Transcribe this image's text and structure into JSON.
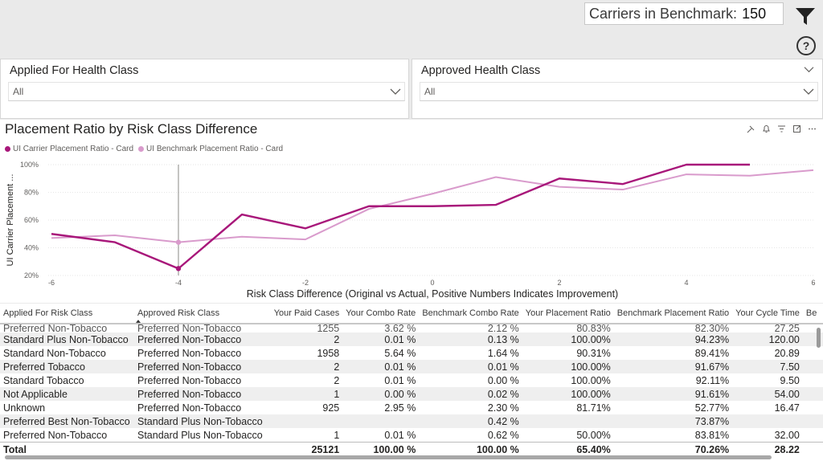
{
  "header": {
    "benchmark_label": "Carriers in Benchmark:",
    "benchmark_value": "150"
  },
  "slicers": [
    {
      "title": "Applied For Health Class",
      "value": "All"
    },
    {
      "title": "Approved Health Class",
      "value": "All"
    }
  ],
  "chart_data": {
    "type": "line",
    "title": "Placement Ratio by Risk Class Difference",
    "xlabel": "Risk Class Difference (Original vs Actual, Positive Numbers Indicates Improvement)",
    "ylabel": "UI Carrier Placement ...",
    "xlim": [
      -6,
      6
    ],
    "ylim": [
      20,
      100
    ],
    "x_ticks": [
      "-6",
      "-4",
      "-2",
      "0",
      "2",
      "4",
      "6"
    ],
    "y_ticks": [
      "20%",
      "40%",
      "60%",
      "80%",
      "100%"
    ],
    "legend_position": "top-left",
    "colors": {
      "carrier": "#a8177a",
      "benchmark": "#d99bcc"
    },
    "series": [
      {
        "name": "UI Carrier Placement Ratio - Card",
        "x": [
          -6,
          -5,
          -4,
          -3,
          -2,
          -1,
          0,
          1,
          2,
          3,
          4,
          5
        ],
        "values": [
          50,
          44,
          25,
          64,
          54,
          70,
          70,
          71,
          90,
          86,
          100,
          100
        ]
      },
      {
        "name": "UI Benchmark Placement Ratio - Card",
        "x": [
          -6,
          -5,
          -4,
          -3,
          -2,
          -1,
          0,
          1,
          2,
          3,
          4,
          5,
          6
        ],
        "values": [
          47,
          49,
          44,
          48,
          46,
          68,
          79,
          91,
          84,
          82,
          93,
          92,
          96
        ]
      }
    ],
    "hover_x": -4
  },
  "table": {
    "columns": [
      "Applied For Risk Class",
      "Approved Risk Class",
      "Your Paid Cases",
      "Your Combo Rate",
      "Benchmark Combo Rate",
      "Your Placement Ratio",
      "Benchmark Placement Ratio",
      "Your Cycle Time",
      "Be"
    ],
    "cut_row": [
      "Preferred Non-Tobacco",
      "Preferred Non-Tobacco",
      "1255",
      "3.62 %",
      "2.12 %",
      "80.83%",
      "82.30%",
      "27.25"
    ],
    "rows": [
      [
        "Standard Plus Non-Tobacco",
        "Preferred Non-Tobacco",
        "2",
        "0.01 %",
        "0.13 %",
        "100.00%",
        "94.23%",
        "120.00"
      ],
      [
        "Standard Non-Tobacco",
        "Preferred Non-Tobacco",
        "1958",
        "5.64 %",
        "1.64 %",
        "90.31%",
        "89.41%",
        "20.89"
      ],
      [
        "Preferred Tobacco",
        "Preferred Non-Tobacco",
        "2",
        "0.01 %",
        "0.01 %",
        "100.00%",
        "91.67%",
        "7.50"
      ],
      [
        "Standard Tobacco",
        "Preferred Non-Tobacco",
        "2",
        "0.01 %",
        "0.00 %",
        "100.00%",
        "92.11%",
        "9.50"
      ],
      [
        "Not Applicable",
        "Preferred Non-Tobacco",
        "1",
        "0.00 %",
        "0.02 %",
        "100.00%",
        "91.61%",
        "54.00"
      ],
      [
        "Unknown",
        "Preferred Non-Tobacco",
        "925",
        "2.95 %",
        "2.30 %",
        "81.71%",
        "52.77%",
        "16.47"
      ],
      [
        "Preferred Best Non-Tobacco",
        "Standard Plus Non-Tobacco",
        "",
        "",
        "0.42 %",
        "",
        "73.87%",
        ""
      ],
      [
        "Preferred Non-Tobacco",
        "Standard Plus Non-Tobacco",
        "1",
        "0.01 %",
        "0.62 %",
        "50.00%",
        "83.81%",
        "32.00"
      ]
    ],
    "total": [
      "Total",
      "",
      "25121",
      "100.00 %",
      "100.00 %",
      "65.40%",
      "70.26%",
      "28.22"
    ]
  }
}
